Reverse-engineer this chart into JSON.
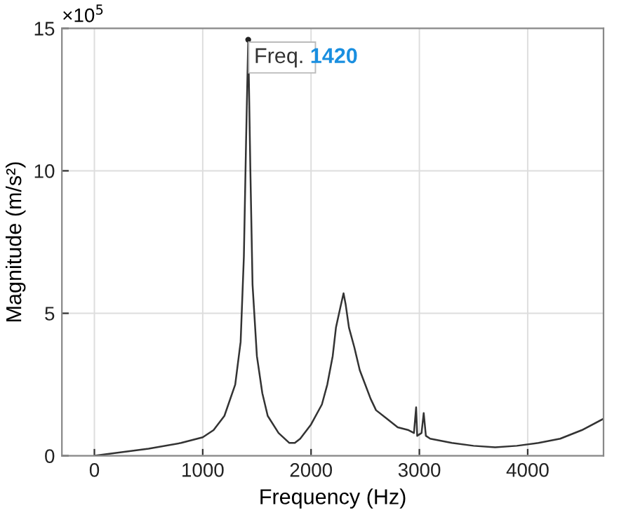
{
  "chart_data": {
    "type": "line",
    "xlabel": "Frequency (Hz)",
    "ylabel": "Magnitude (m/s²)",
    "x": [
      0,
      200,
      500,
      800,
      1000,
      1100,
      1200,
      1300,
      1350,
      1380,
      1400,
      1420,
      1440,
      1460,
      1500,
      1550,
      1600,
      1700,
      1800,
      1850,
      1900,
      2000,
      2100,
      2150,
      2200,
      2230,
      2270,
      2300,
      2320,
      2350,
      2400,
      2450,
      2500,
      2550,
      2600,
      2700,
      2800,
      2900,
      2950,
      2970,
      2980,
      3020,
      3040,
      3060,
      3100,
      3300,
      3500,
      3700,
      3900,
      4100,
      4300,
      4500,
      4700
    ],
    "series": [
      {
        "color": "#333333",
        "values": [
          0,
          0.1,
          0.25,
          0.45,
          0.65,
          0.9,
          1.4,
          2.5,
          4,
          7,
          11,
          14.6,
          10,
          6,
          3.5,
          2.2,
          1.4,
          0.8,
          0.45,
          0.45,
          0.6,
          1.1,
          1.8,
          2.5,
          3.5,
          4.5,
          5.2,
          5.7,
          5.3,
          4.5,
          3.8,
          3.0,
          2.5,
          2.0,
          1.6,
          1.3,
          1.0,
          0.9,
          0.8,
          1.7,
          0.7,
          0.8,
          1.5,
          0.7,
          0.6,
          0.45,
          0.35,
          0.3,
          0.35,
          0.45,
          0.6,
          0.9,
          1.3
        ]
      }
    ],
    "xlim": [
      -300,
      4700
    ],
    "ylim": [
      0,
      15
    ],
    "xticks": [
      0,
      1000,
      2000,
      3000,
      4000
    ],
    "yticks": [
      0,
      5,
      10,
      15
    ],
    "grid": true,
    "marker": "none",
    "line_style": "solid",
    "annotations": [
      "×10$^{5}$",
      {
        "text": "Freq. 1420",
        "x": 1420,
        "y": 14.6
      }
    ]
  }
}
